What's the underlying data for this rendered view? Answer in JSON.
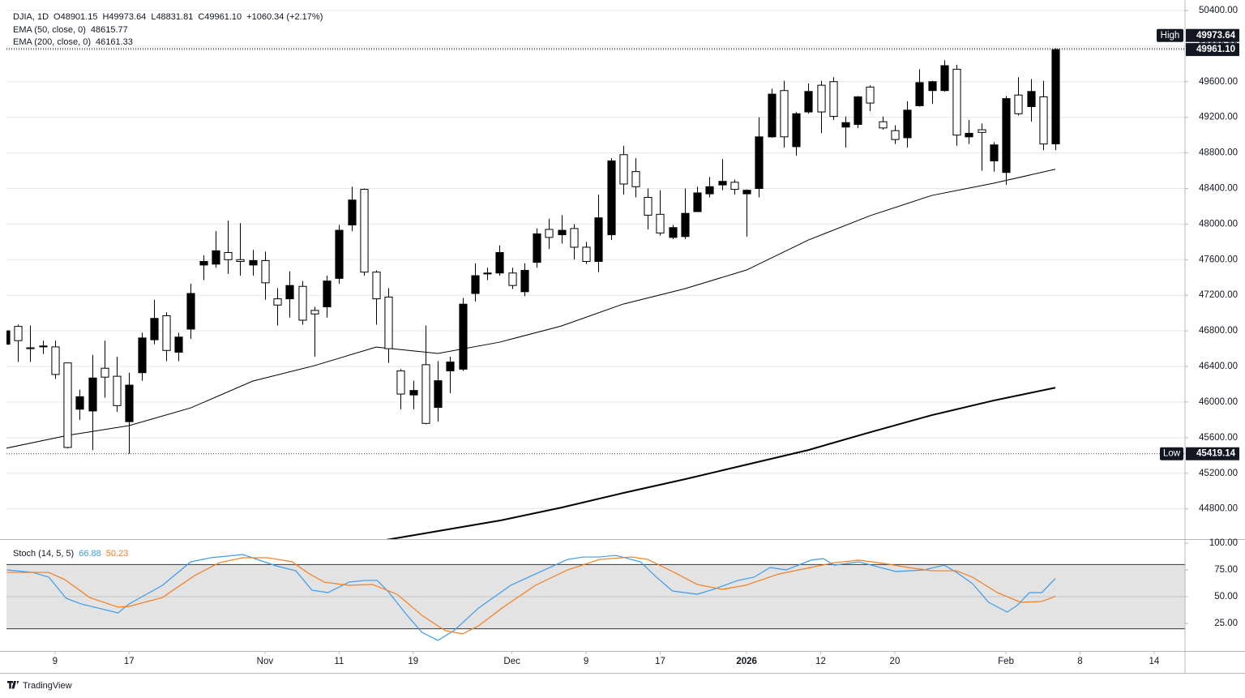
{
  "chart_data": [
    {
      "type": "candlestick",
      "symbol": "DJIA, 1D",
      "ohlc_legend": [
        {
          "key": "O",
          "value": "48901.15"
        },
        {
          "key": "H",
          "value": "49973.64"
        },
        {
          "key": "L",
          "value": "48831.81"
        },
        {
          "key": "C",
          "value": "49961.10"
        }
      ],
      "change": "+1060.34 (+2.17%)",
      "high_label": "High",
      "low_label": "Low",
      "low_value_label": "45419.14",
      "up_color": "#000000",
      "down_color": "#ffffff",
      "border_color": "#000000",
      "ohlc": [
        [
          46650,
          46830,
          46620,
          46800
        ],
        [
          46850,
          46870,
          46450,
          46690
        ],
        [
          46610,
          46860,
          46450,
          46600
        ],
        [
          46620,
          46690,
          46540,
          46630
        ],
        [
          46620,
          46690,
          46260,
          46310
        ],
        [
          46440,
          46440,
          45480,
          45490
        ],
        [
          45920,
          46140,
          45800,
          46060
        ],
        [
          45900,
          46530,
          45460,
          46270
        ],
        [
          46380,
          46690,
          46050,
          46280
        ],
        [
          46290,
          46510,
          45890,
          45960
        ],
        [
          45780,
          46330,
          45419.14,
          46190
        ],
        [
          46330,
          46780,
          46240,
          46720
        ],
        [
          46700,
          47150,
          46650,
          46940
        ],
        [
          46970,
          47010,
          46460,
          46580
        ],
        [
          46560,
          46780,
          46460,
          46730
        ],
        [
          46820,
          47330,
          46710,
          47220
        ],
        [
          47540,
          47650,
          47370,
          47580
        ],
        [
          47550,
          47920,
          47510,
          47700
        ],
        [
          47680,
          48040,
          47440,
          47600
        ],
        [
          47600,
          48010,
          47420,
          47580
        ],
        [
          47540,
          47710,
          47420,
          47590
        ],
        [
          47590,
          47690,
          47150,
          47340
        ],
        [
          47160,
          47280,
          46860,
          47090
        ],
        [
          47160,
          47470,
          46950,
          47310
        ],
        [
          47300,
          47360,
          46870,
          46920
        ],
        [
          47030,
          47070,
          46510,
          46990
        ],
        [
          47070,
          47420,
          46950,
          47360
        ],
        [
          47390,
          47990,
          47330,
          47930
        ],
        [
          47990,
          48420,
          47920,
          48270
        ],
        [
          48390,
          48400,
          47420,
          47460
        ],
        [
          47460,
          47480,
          46870,
          47160
        ],
        [
          47180,
          47280,
          46440,
          46600
        ],
        [
          46350,
          46370,
          45920,
          46090
        ],
        [
          46080,
          46240,
          45920,
          46130
        ],
        [
          46420,
          46860,
          45750,
          45760
        ],
        [
          45940,
          46460,
          45780,
          46240
        ],
        [
          46350,
          46510,
          46100,
          46450
        ],
        [
          46370,
          47170,
          46350,
          47100
        ],
        [
          47220,
          47560,
          47130,
          47420
        ],
        [
          47440,
          47510,
          47370,
          47450
        ],
        [
          47450,
          47760,
          47420,
          47680
        ],
        [
          47450,
          47510,
          47270,
          47310
        ],
        [
          47240,
          47560,
          47190,
          47480
        ],
        [
          47570,
          47950,
          47510,
          47890
        ],
        [
          47940,
          48060,
          47720,
          47850
        ],
        [
          47880,
          48100,
          47780,
          47930
        ],
        [
          47950,
          48000,
          47600,
          47740
        ],
        [
          47740,
          47800,
          47550,
          47580
        ],
        [
          47580,
          48330,
          47460,
          48070
        ],
        [
          47880,
          48740,
          47820,
          48710
        ],
        [
          48780,
          48880,
          48330,
          48450
        ],
        [
          48590,
          48740,
          48300,
          48420
        ],
        [
          48300,
          48400,
          47940,
          48100
        ],
        [
          48110,
          48380,
          47870,
          47900
        ],
        [
          47850,
          47990,
          47830,
          47960
        ],
        [
          47860,
          48400,
          47830,
          48120
        ],
        [
          48140,
          48420,
          48140,
          48350
        ],
        [
          48340,
          48530,
          48300,
          48420
        ],
        [
          48440,
          48730,
          48380,
          48480
        ],
        [
          48470,
          48500,
          48330,
          48390
        ],
        [
          48340,
          48390,
          47860,
          48380
        ],
        [
          48400,
          49200,
          48300,
          48980
        ],
        [
          48980,
          49520,
          48970,
          49460
        ],
        [
          49500,
          49610,
          48860,
          48980
        ],
        [
          48870,
          49260,
          48770,
          49240
        ],
        [
          49260,
          49580,
          49240,
          49490
        ],
        [
          49560,
          49610,
          49020,
          49260
        ],
        [
          49600,
          49650,
          49170,
          49210
        ],
        [
          49090,
          49210,
          48860,
          49140
        ],
        [
          49120,
          49440,
          49080,
          49430
        ],
        [
          49540,
          49560,
          49270,
          49360
        ],
        [
          49150,
          49210,
          49060,
          49080
        ],
        [
          49050,
          49110,
          48900,
          48950
        ],
        [
          48970,
          49380,
          48860,
          49280
        ],
        [
          49330,
          49740,
          49320,
          49590
        ],
        [
          49500,
          49610,
          49350,
          49600
        ],
        [
          49500,
          49840,
          49490,
          49780
        ],
        [
          49740,
          49790,
          48880,
          49000
        ],
        [
          48980,
          49170,
          48900,
          49020
        ],
        [
          49060,
          49130,
          48600,
          49030
        ],
        [
          48710,
          48920,
          48590,
          48890
        ],
        [
          48580,
          49440,
          48440,
          49410
        ],
        [
          49450,
          49650,
          49220,
          49240
        ],
        [
          49320,
          49630,
          49150,
          49490
        ],
        [
          49430,
          49610,
          48830,
          48900
        ],
        [
          48901.15,
          49973.64,
          48831.81,
          49961.1
        ]
      ],
      "overlays": [
        {
          "name": "EMA (50, close, 0)",
          "color": "#000000",
          "width": 1,
          "x": [
            0,
            5,
            10,
            15,
            20,
            25,
            30,
            35,
            40,
            45,
            50,
            55,
            60,
            65,
            70,
            75,
            80,
            85
          ],
          "values": [
            45480,
            45625,
            45735,
            45935,
            46235,
            46409,
            46618,
            46546,
            46673,
            46855,
            47101,
            47274,
            47484,
            47821,
            48094,
            48322,
            48459,
            48615.77
          ]
        },
        {
          "name": "EMA (200, close, 0)",
          "color": "#000000",
          "width": 2,
          "x": [
            29,
            30,
            35,
            40,
            45,
            50,
            55,
            60,
            65,
            70,
            75,
            80,
            85
          ],
          "values": [
            44413,
            44432,
            44550,
            44668,
            44814,
            44978,
            45133,
            45297,
            45461,
            45661,
            45853,
            46017,
            46161.33
          ]
        }
      ],
      "xlim": [
        0.07,
        95.5
      ],
      "xticks": [
        {
          "value": 4,
          "label": "9"
        },
        {
          "value": 10,
          "label": "17"
        },
        {
          "value": 21,
          "label": "Nov"
        },
        {
          "value": 27,
          "label": "11"
        },
        {
          "value": 33,
          "label": "19"
        },
        {
          "value": 41,
          "label": "Dec"
        },
        {
          "value": 47,
          "label": "9"
        },
        {
          "value": 53,
          "label": "17"
        },
        {
          "value": 60,
          "label": "2026",
          "bold": true
        },
        {
          "value": 66,
          "label": "12"
        },
        {
          "value": 72,
          "label": "20"
        },
        {
          "value": 81,
          "label": "Feb"
        },
        {
          "value": 87,
          "label": "8"
        },
        {
          "value": 93,
          "label": "14"
        }
      ],
      "ylim": [
        44460,
        50445
      ],
      "yticks": [
        {
          "value": 44800,
          "label": "44800.00"
        },
        {
          "value": 45200,
          "label": "45200.00"
        },
        {
          "value": 45600,
          "label": "45600.00"
        },
        {
          "value": 46000,
          "label": "46000.00"
        },
        {
          "value": 46400,
          "label": "46400.00"
        },
        {
          "value": 46800,
          "label": "46800.00"
        },
        {
          "value": 47200,
          "label": "47200.00"
        },
        {
          "value": 47600,
          "label": "47600.00"
        },
        {
          "value": 48000,
          "label": "48000.00"
        },
        {
          "value": 48400,
          "label": "48400.00"
        },
        {
          "value": 48800,
          "label": "48800.00"
        },
        {
          "value": 49200,
          "label": "49200.00"
        },
        {
          "value": 49600,
          "label": "49600.00"
        },
        {
          "value": 50000,
          "label": "50000.00"
        },
        {
          "value": 50400,
          "label": "50400.00"
        }
      ],
      "grid": true
    },
    {
      "type": "line",
      "title": "Stoch (14, 5, 5)",
      "series": [
        {
          "color": "#3d9be9",
          "x": [
            0.1,
            2.2,
            3.5,
            4.9,
            6.1,
            9.1,
            10,
            12.7,
            15,
            16.6,
            19.2,
            21.9,
            23.5,
            24.8,
            26.1,
            27.8,
            29.1,
            30.1,
            31,
            32.4,
            33.7,
            35,
            36.3,
            38.3,
            40.9,
            42.9,
            45.5,
            46.8,
            48.1,
            49.4,
            51.4,
            52.7,
            54,
            56,
            57.3,
            59.3,
            60.6,
            61.9,
            63.2,
            65.2,
            66.2,
            67.1,
            69.1,
            70.8,
            72.1,
            74.4,
            76,
            77,
            78.3,
            79.6,
            81.1,
            81.9,
            82.9,
            83.9,
            85
          ],
          "values": [
            75,
            72.7,
            68.2,
            48.5,
            43.2,
            34.8,
            43.2,
            60.6,
            82.6,
            86.4,
            89.4,
            78.8,
            74.2,
            56.1,
            53.8,
            63.6,
            65.2,
            65.2,
            54.5,
            34.1,
            16.7,
            9.1,
            18.2,
            39.4,
            60.6,
            71.2,
            84.8,
            87.1,
            87.1,
            88.6,
            82.6,
            68.2,
            55.3,
            52.3,
            56.8,
            65.2,
            68.2,
            77.3,
            75,
            84.1,
            85.6,
            79.5,
            82.6,
            77.3,
            73.5,
            75,
            79.5,
            72.7,
            62.1,
            44.7,
            35.6,
            41.7,
            53.8,
            53.8,
            66.88
          ]
        },
        {
          "color": "#f57c1f",
          "x": [
            0.1,
            3.5,
            4.8,
            6.8,
            9.1,
            10,
            12.7,
            15.3,
            17.3,
            19.2,
            21.2,
            23.2,
            24.5,
            25.8,
            27.8,
            29.7,
            31.7,
            33.7,
            35.6,
            37,
            38.3,
            40.2,
            42.9,
            45.5,
            48.1,
            50.7,
            52,
            54,
            56,
            58,
            59.9,
            62.6,
            65.2,
            67.1,
            69.1,
            71.1,
            73.1,
            75,
            77,
            78.3,
            80.3,
            82.2,
            83.9,
            85
          ],
          "values": [
            72.7,
            72.7,
            65.9,
            49.2,
            40.2,
            40.9,
            49.2,
            69.7,
            81.8,
            86.4,
            86.4,
            82.6,
            72,
            63.6,
            60.6,
            61.4,
            52.3,
            32.6,
            18.2,
            15.2,
            22.7,
            39.4,
            60.6,
            75,
            84.8,
            87.1,
            84.8,
            73.5,
            61.4,
            56.8,
            60.6,
            71.2,
            77.3,
            81.8,
            84.1,
            81.1,
            77.3,
            74.2,
            74.2,
            68.2,
            53.8,
            44.7,
            45.5,
            50.23
          ]
        }
      ],
      "bands": [
        20,
        80
      ],
      "band_color": "#e3e3e3",
      "xlim": [
        0.07,
        95.5
      ],
      "ylim": [
        -0.8,
        102.3
      ],
      "yticks": [
        {
          "value": 25,
          "label": "25.00"
        },
        {
          "value": 50,
          "label": "50.00"
        },
        {
          "value": 75,
          "label": "75.00"
        },
        {
          "value": 100,
          "label": "100.00"
        }
      ]
    }
  ],
  "footer": {
    "brand": "TradingView"
  }
}
